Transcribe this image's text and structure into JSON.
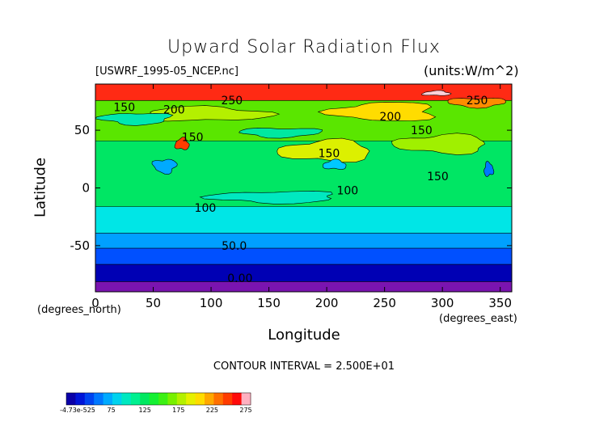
{
  "chart_data": {
    "type": "heatmap",
    "title": "Upward Solar Radiation Flux",
    "file_label": "[USWRF_1995-05_NCEP.nc]",
    "units_label": "(units:W/m^2)",
    "xlabel": "Longitude",
    "ylabel": "Latitude",
    "x_unit": "(degrees_east)",
    "y_unit": "(degrees_north)",
    "xlim": [
      0,
      360
    ],
    "ylim": [
      -90,
      90
    ],
    "x_ticks": [
      0,
      50,
      100,
      150,
      200,
      250,
      300,
      350
    ],
    "x_tick_labels": [
      "0",
      "50",
      "100",
      "150",
      "200",
      "250",
      "300",
      "350"
    ],
    "y_ticks": [
      50,
      0,
      -50
    ],
    "y_tick_labels": [
      "50",
      "0",
      "-50"
    ],
    "contour_interval_text": "CONTOUR INTERVAL = 2.500E+01",
    "contour_labels": [
      {
        "text": "250",
        "lon": 118,
        "lat": 76
      },
      {
        "text": "250",
        "lon": 330,
        "lat": 76
      },
      {
        "text": "200",
        "lon": 68,
        "lat": 68
      },
      {
        "text": "200",
        "lon": 255,
        "lat": 62
      },
      {
        "text": "150",
        "lon": 25,
        "lat": 70
      },
      {
        "text": "150",
        "lon": 282,
        "lat": 50
      },
      {
        "text": "150",
        "lon": 202,
        "lat": 30
      },
      {
        "text": "150",
        "lon": 296,
        "lat": 10
      },
      {
        "text": "150",
        "lon": 84,
        "lat": 44
      },
      {
        "text": "100",
        "lon": 218,
        "lat": -2
      },
      {
        "text": "100",
        "lon": 95,
        "lat": -17
      },
      {
        "text": "50.0",
        "lon": 120,
        "lat": -50
      },
      {
        "text": "0.00",
        "lon": 125,
        "lat": -78
      }
    ],
    "colorbar": {
      "colors": [
        "#0a00a8",
        "#0015d8",
        "#0044f0",
        "#0078ff",
        "#00aaff",
        "#00d2ee",
        "#00e8c0",
        "#00f090",
        "#00e860",
        "#14f032",
        "#3cf014",
        "#78f000",
        "#b4f000",
        "#e6f000",
        "#ffdc00",
        "#ffa800",
        "#ff7000",
        "#ff3c00",
        "#ff0a0a",
        "#ffb0c0"
      ],
      "labels": [
        "-4.73e-525",
        "75",
        "125",
        "175",
        "225",
        "275"
      ]
    },
    "bands": [
      {
        "lat_max": -77,
        "lat_min": -90,
        "color": "#7a14b0"
      },
      {
        "lat_max": -62,
        "lat_min": -77,
        "color": "#0000b4"
      },
      {
        "lat_max": -48,
        "lat_min": -62,
        "color": "#0050ff"
      },
      {
        "lat_max": -35,
        "lat_min": -48,
        "color": "#00a0ff"
      },
      {
        "lat_max": -12,
        "lat_min": -35,
        "color": "#00e6e6"
      },
      {
        "lat_max": 45,
        "lat_min": -12,
        "color": "#00e664"
      },
      {
        "lat_max": 80,
        "lat_min": 45,
        "color": "#5ae600"
      },
      {
        "lat_max": 90,
        "lat_min": 80,
        "color": "#ff2a14"
      }
    ],
    "patches": [
      {
        "lon": 200,
        "lat": 32,
        "rx": 40,
        "ry": 9,
        "color": "#dcf000"
      },
      {
        "lon": 300,
        "lat": 38,
        "rx": 40,
        "ry": 8,
        "color": "#a0f000"
      },
      {
        "lon": 95,
        "lat": 64,
        "rx": 55,
        "ry": 6,
        "color": "#b4f000"
      },
      {
        "lon": 250,
        "lat": 66,
        "rx": 45,
        "ry": 8,
        "color": "#ffdc00"
      },
      {
        "lon": 330,
        "lat": 74,
        "rx": 25,
        "ry": 4,
        "color": "#ff8c00"
      },
      {
        "lon": 75,
        "lat": 38,
        "rx": 6,
        "ry": 5,
        "color": "#ff3c00"
      },
      {
        "lon": 60,
        "lat": 19,
        "rx": 10,
        "ry": 6,
        "color": "#00aaff"
      },
      {
        "lon": 340,
        "lat": 16,
        "rx": 4,
        "ry": 6,
        "color": "#0078ff"
      },
      {
        "lon": 207,
        "lat": 20,
        "rx": 10,
        "ry": 4,
        "color": "#00c8ff"
      },
      {
        "lon": 35,
        "lat": 60,
        "rx": 30,
        "ry": 5,
        "color": "#00e8b0"
      },
      {
        "lon": 160,
        "lat": 48,
        "rx": 35,
        "ry": 4,
        "color": "#00e8a0"
      },
      {
        "lon": 155,
        "lat": -8,
        "rx": 55,
        "ry": 5,
        "color": "#00e8c0"
      },
      {
        "lon": 295,
        "lat": 82,
        "rx": 12,
        "ry": 2,
        "color": "#ffd0d8"
      }
    ]
  }
}
